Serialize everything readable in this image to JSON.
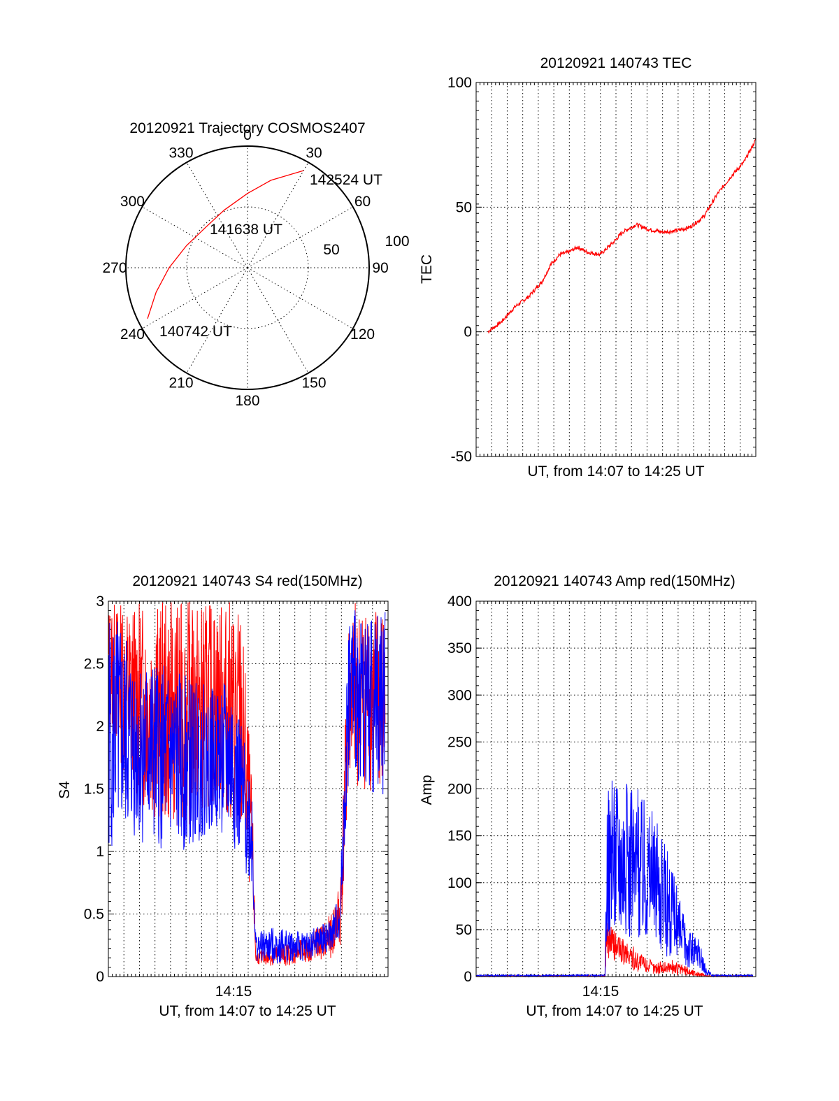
{
  "colors": {
    "red": "#ff0000",
    "blue": "#0000ff",
    "axis": "#000000"
  },
  "chart_data": [
    {
      "id": "polar",
      "type": "scatter",
      "title": "20120921 Trajectory COSMOS2407",
      "azimuth_labels": [
        "0",
        "30",
        "60",
        "90",
        "120",
        "150",
        "180",
        "210",
        "240",
        "270",
        "300",
        "330"
      ],
      "radial_labels": [
        "50",
        "100"
      ],
      "annotations": [
        "142524 UT",
        "141638 UT",
        "140742 UT"
      ],
      "series": [
        {
          "color": "red",
          "points": [
            {
              "az": 243,
              "zen": 83
            },
            {
              "az": 255,
              "zen": 70
            },
            {
              "az": 270,
              "zen": 58
            },
            {
              "az": 290,
              "zen": 48
            },
            {
              "az": 315,
              "zen": 43
            },
            {
              "az": 338,
              "zen": 46
            },
            {
              "az": 360,
              "zen": 55
            },
            {
              "az": 375,
              "zen": 67
            },
            {
              "az": 390,
              "zen": 83
            }
          ]
        }
      ]
    },
    {
      "id": "tec",
      "type": "line",
      "title": "20120921 140743 TEC",
      "xlabel": "UT, from 14:07 to 14:25 UT",
      "ylabel": "TEC",
      "ylim": [
        -50,
        100
      ],
      "yticks": [
        "-50",
        "0",
        "50",
        "100"
      ],
      "xlim": [
        14.1119,
        14.4233
      ],
      "series": [
        {
          "color": "red",
          "x": [
            14.125,
            14.14,
            14.155,
            14.17,
            14.185,
            14.195,
            14.205,
            14.215,
            14.225,
            14.235,
            14.25,
            14.265,
            14.275,
            14.29,
            14.305,
            14.32,
            14.335,
            14.35,
            14.365,
            14.38,
            14.395,
            14.41,
            14.4233
          ],
          "y": [
            0,
            4,
            10,
            14,
            20,
            27,
            31,
            32,
            34,
            32,
            31,
            36,
            40,
            43,
            41,
            40,
            40.5,
            42,
            46,
            55,
            62,
            68,
            77
          ]
        }
      ]
    },
    {
      "id": "s4",
      "type": "line",
      "title": "20120921 140743 S4 red(150MHz)",
      "xlabel": "UT, from 14:07 to 14:25 UT",
      "ylabel": "S4",
      "ylim": [
        0,
        3
      ],
      "yticks": [
        "0",
        "0.5",
        "1",
        "1.5",
        "2",
        "2.5",
        "3"
      ],
      "xticks": [
        {
          "value": 14.25,
          "label": "14:15"
        }
      ],
      "xlim": [
        14.1119,
        14.4233
      ],
      "series": [
        {
          "color": "red",
          "envelope": [
            {
              "x": 14.112,
              "lo": 2.0,
              "hi": 3.0
            },
            {
              "x": 14.14,
              "lo": 1.4,
              "hi": 3.0
            },
            {
              "x": 14.17,
              "lo": 1.2,
              "hi": 3.0
            },
            {
              "x": 14.2,
              "lo": 1.2,
              "hi": 3.0
            },
            {
              "x": 14.23,
              "lo": 1.4,
              "hi": 3.0
            },
            {
              "x": 14.25,
              "lo": 1.2,
              "hi": 3.0
            },
            {
              "x": 14.26,
              "lo": 1.0,
              "hi": 3.0
            },
            {
              "x": 14.272,
              "lo": 0.6,
              "hi": 1.5
            },
            {
              "x": 14.276,
              "lo": 0.1,
              "hi": 0.2
            },
            {
              "x": 14.3,
              "lo": 0.08,
              "hi": 0.25
            },
            {
              "x": 14.33,
              "lo": 0.1,
              "hi": 0.3
            },
            {
              "x": 14.36,
              "lo": 0.15,
              "hi": 0.5
            },
            {
              "x": 14.37,
              "lo": 0.2,
              "hi": 0.8
            },
            {
              "x": 14.38,
              "lo": 1.5,
              "hi": 3.0
            },
            {
              "x": 14.4,
              "lo": 1.5,
              "hi": 3.0
            },
            {
              "x": 14.42,
              "lo": 1.3,
              "hi": 3.0
            }
          ]
        },
        {
          "color": "blue",
          "envelope": [
            {
              "x": 14.112,
              "lo": 1.0,
              "hi": 3.0
            },
            {
              "x": 14.14,
              "lo": 1.1,
              "hi": 2.6
            },
            {
              "x": 14.17,
              "lo": 1.0,
              "hi": 2.5
            },
            {
              "x": 14.2,
              "lo": 1.0,
              "hi": 2.4
            },
            {
              "x": 14.23,
              "lo": 1.2,
              "hi": 2.3
            },
            {
              "x": 14.25,
              "lo": 1.0,
              "hi": 2.4
            },
            {
              "x": 14.26,
              "lo": 0.9,
              "hi": 2.0
            },
            {
              "x": 14.272,
              "lo": 0.7,
              "hi": 1.6
            },
            {
              "x": 14.276,
              "lo": 0.12,
              "hi": 0.35
            },
            {
              "x": 14.3,
              "lo": 0.1,
              "hi": 0.4
            },
            {
              "x": 14.33,
              "lo": 0.12,
              "hi": 0.35
            },
            {
              "x": 14.36,
              "lo": 0.2,
              "hi": 0.45
            },
            {
              "x": 14.37,
              "lo": 0.3,
              "hi": 0.7
            },
            {
              "x": 14.38,
              "lo": 1.6,
              "hi": 3.0
            },
            {
              "x": 14.4,
              "lo": 1.5,
              "hi": 2.9
            },
            {
              "x": 14.42,
              "lo": 1.4,
              "hi": 3.0
            }
          ]
        }
      ]
    },
    {
      "id": "amp",
      "type": "line",
      "title": "20120921 140743 Amp red(150MHz)",
      "xlabel": "UT, from 14:07 to 14:25 UT",
      "ylabel": "Amp",
      "ylim": [
        0,
        400
      ],
      "yticks": [
        "0",
        "50",
        "100",
        "150",
        "200",
        "250",
        "300",
        "350",
        "400"
      ],
      "xticks": [
        {
          "value": 14.25,
          "label": "14:15"
        }
      ],
      "xlim": [
        14.1119,
        14.4233
      ],
      "series": [
        {
          "color": "red",
          "envelope": [
            {
              "x": 14.112,
              "lo": 0,
              "hi": 1
            },
            {
              "x": 14.2555,
              "lo": 0,
              "hi": 1
            },
            {
              "x": 14.257,
              "lo": 20,
              "hi": 60
            },
            {
              "x": 14.27,
              "lo": 15,
              "hi": 45
            },
            {
              "x": 14.29,
              "lo": 5,
              "hi": 30
            },
            {
              "x": 14.31,
              "lo": 3,
              "hi": 15
            },
            {
              "x": 14.33,
              "lo": 2,
              "hi": 18
            },
            {
              "x": 14.36,
              "lo": 0,
              "hi": 5
            },
            {
              "x": 14.37,
              "lo": 0,
              "hi": 1
            },
            {
              "x": 14.42,
              "lo": 0,
              "hi": 1
            }
          ]
        },
        {
          "color": "blue",
          "envelope": [
            {
              "x": 14.112,
              "lo": 0,
              "hi": 2
            },
            {
              "x": 14.2555,
              "lo": 0,
              "hi": 2
            },
            {
              "x": 14.257,
              "lo": 40,
              "hi": 200
            },
            {
              "x": 14.27,
              "lo": 50,
              "hi": 230
            },
            {
              "x": 14.285,
              "lo": 40,
              "hi": 200
            },
            {
              "x": 14.3,
              "lo": 40,
              "hi": 200
            },
            {
              "x": 14.315,
              "lo": 30,
              "hi": 160
            },
            {
              "x": 14.33,
              "lo": 15,
              "hi": 120
            },
            {
              "x": 14.345,
              "lo": 10,
              "hi": 60
            },
            {
              "x": 14.36,
              "lo": 5,
              "hi": 40
            },
            {
              "x": 14.368,
              "lo": 0,
              "hi": 10
            },
            {
              "x": 14.375,
              "lo": 0,
              "hi": 2
            },
            {
              "x": 14.42,
              "lo": 0,
              "hi": 2
            }
          ]
        }
      ]
    }
  ]
}
